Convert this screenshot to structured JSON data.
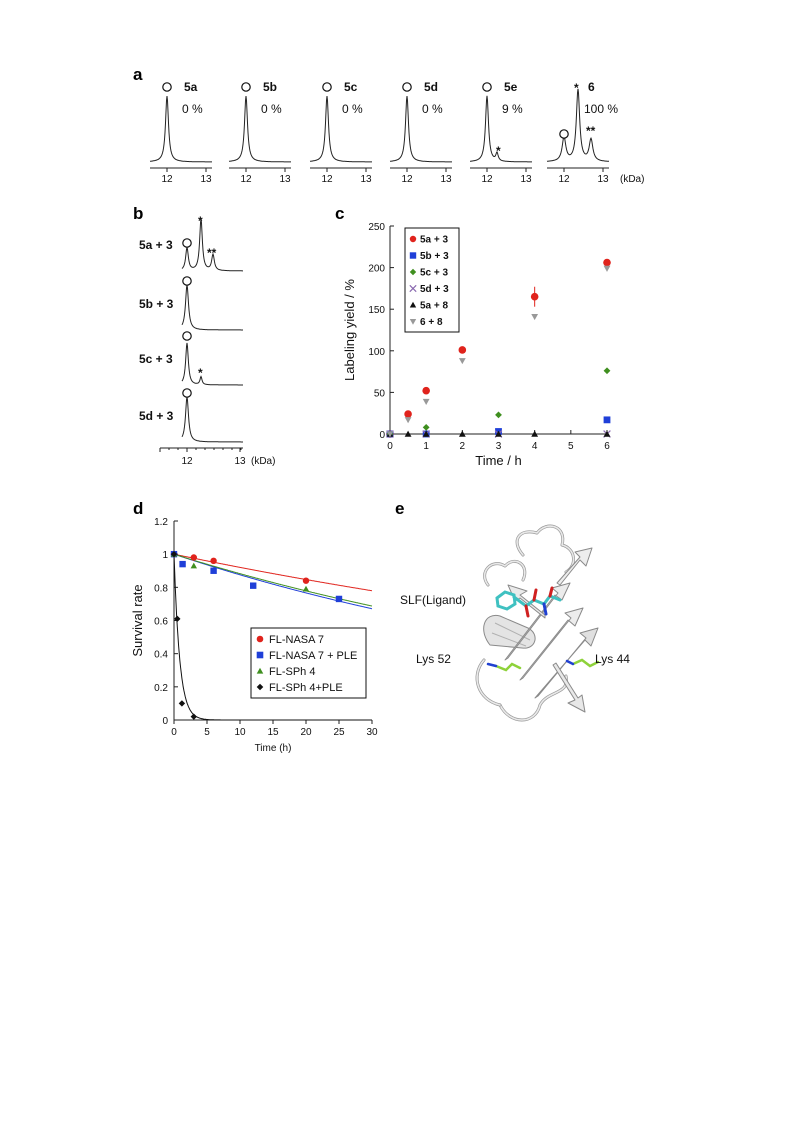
{
  "figure": {
    "panel_letters": [
      "a",
      "b",
      "c",
      "d",
      "e"
    ],
    "panel_a": {
      "samples": [
        {
          "name": "5a",
          "yield": "0 %"
        },
        {
          "name": "5b",
          "yield": "0 %"
        },
        {
          "name": "5c",
          "yield": "0 %"
        },
        {
          "name": "5d",
          "yield": "0 %"
        },
        {
          "name": "5e",
          "yield": "9 %"
        },
        {
          "name": "6",
          "yield": "100 %"
        }
      ],
      "tick_12": "12",
      "tick_13": "13",
      "unit": "(kDa)",
      "single_star": "*",
      "double_star": "**"
    },
    "panel_b": {
      "samples": [
        "5a + 3",
        "5b + 3",
        "5c + 3",
        "5d + 3"
      ],
      "tick_12": "12",
      "tick_13": "13",
      "unit": "(kDa)",
      "single_star": "*",
      "double_star": "**"
    },
    "panel_e": {
      "ligand_label": "SLF(Ligand)",
      "lys52_label": "Lys 52",
      "lys44_label": "Lys 44"
    }
  },
  "chart_data": [
    {
      "panel": "c",
      "type": "scatter",
      "xlabel": "Time / h",
      "ylabel": "Labeling yield / %",
      "xlim": [
        0,
        6
      ],
      "ylim": [
        0,
        250
      ],
      "xticks": [
        0,
        1,
        2,
        3,
        4,
        5,
        6
      ],
      "yticks": [
        0,
        50,
        100,
        150,
        200,
        250
      ],
      "legend_position": "top-left",
      "grid": false,
      "series": [
        {
          "name": "5a + 3",
          "marker": "circle",
          "color": "#e0231c",
          "x": [
            0,
            0.5,
            1,
            2,
            4,
            6
          ],
          "y": [
            0,
            24,
            52,
            101,
            165,
            206
          ],
          "err": [
            0,
            0,
            0,
            0,
            12,
            0
          ]
        },
        {
          "name": "5b + 3",
          "marker": "square",
          "color": "#1f3fd8",
          "x": [
            0,
            1,
            3,
            6
          ],
          "y": [
            0,
            0,
            3,
            17
          ]
        },
        {
          "name": "5c + 3",
          "marker": "diamond",
          "color": "#3f8f1f",
          "x": [
            0,
            1,
            3,
            6
          ],
          "y": [
            0,
            8,
            23,
            76
          ]
        },
        {
          "name": "5d + 3",
          "marker": "cross",
          "color": "#8a6ab0",
          "x": [
            0,
            1,
            3,
            6
          ],
          "y": [
            0,
            0,
            0,
            0
          ]
        },
        {
          "name": "5a + 8",
          "marker": "triangle-up",
          "color": "#111111",
          "x": [
            0,
            0.5,
            1,
            2,
            3,
            4,
            6
          ],
          "y": [
            0,
            0,
            0,
            0,
            0,
            0,
            0
          ]
        },
        {
          "name": "6 + 8",
          "marker": "triangle-down",
          "color": "#999999",
          "x": [
            0,
            0.5,
            1,
            2,
            4,
            6
          ],
          "y": [
            0,
            17,
            39,
            88,
            141,
            199
          ]
        }
      ]
    },
    {
      "panel": "d",
      "type": "scatter",
      "xlabel": "Time (h)",
      "ylabel": "Survival rate",
      "xlim": [
        0,
        30
      ],
      "ylim": [
        0,
        1.2
      ],
      "xticks": [
        0,
        5,
        10,
        15,
        20,
        25,
        30
      ],
      "yticks": [
        0,
        0.2,
        0.4,
        0.6,
        0.8,
        1,
        1.2
      ],
      "legend_position": "bottom-right",
      "grid": false,
      "series": [
        {
          "name": "FL-NASA 7",
          "marker": "circle",
          "color": "#e0231c",
          "x": [
            0,
            3,
            6,
            20
          ],
          "y": [
            1.0,
            0.98,
            0.96,
            0.84
          ],
          "fit": {
            "kind": "exp",
            "k": 0.0083
          }
        },
        {
          "name": "FL-NASA 7 + PLE",
          "marker": "square",
          "color": "#1f3fd8",
          "x": [
            0,
            1.3,
            6,
            12,
            25
          ],
          "y": [
            1.0,
            0.94,
            0.9,
            0.81,
            0.73
          ],
          "fit": {
            "kind": "exp",
            "k": 0.0133
          }
        },
        {
          "name": "FL-SPh 4",
          "marker": "triangle-up",
          "color": "#3f8f1f",
          "x": [
            0,
            3,
            20
          ],
          "y": [
            1.0,
            0.93,
            0.79
          ],
          "fit": {
            "kind": "exp",
            "k": 0.0125
          }
        },
        {
          "name": "FL-SPh 4+PLE",
          "marker": "diamond",
          "color": "#111111",
          "x": [
            0,
            0.5,
            1.2,
            3
          ],
          "y": [
            1.0,
            0.61,
            0.1,
            0.02
          ],
          "fit": {
            "kind": "exp",
            "k": 1.15
          }
        }
      ]
    }
  ]
}
